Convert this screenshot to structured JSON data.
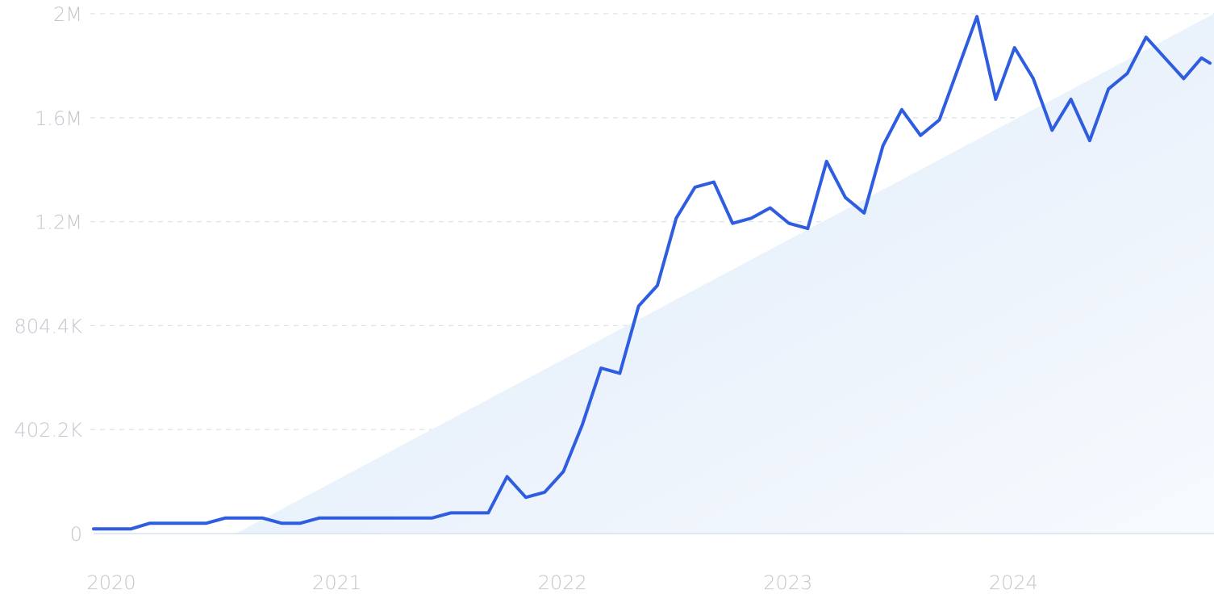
{
  "chart_data": {
    "type": "line",
    "title": "",
    "xlabel": "",
    "ylabel": "",
    "grid": true,
    "legend": "none",
    "ylim": [
      0,
      2011000
    ],
    "y_ticks": [
      {
        "value": 0,
        "label": "0"
      },
      {
        "value": 402200,
        "label": "402.2K"
      },
      {
        "value": 804400,
        "label": "804.4K"
      },
      {
        "value": 1206600,
        "label": "1.2M"
      },
      {
        "value": 1608800,
        "label": "1.6M"
      },
      {
        "value": 2011000,
        "label": "2M"
      }
    ],
    "x_range": [
      "2020-01",
      "2024-11"
    ],
    "x_ticks": [
      {
        "value": "2020-01",
        "label": "2020"
      },
      {
        "value": "2021-01",
        "label": "2021"
      },
      {
        "value": "2022-01",
        "label": "2022"
      },
      {
        "value": "2023-01",
        "label": "2023"
      },
      {
        "value": "2024-01",
        "label": "2024"
      }
    ],
    "colors": {
      "line": "#2f5de0",
      "trend_fill_start": "#dde9f9",
      "trend_fill_end": "#f7fafe",
      "tick_text": "#c4c7cf",
      "grid": "#dde4ee"
    },
    "trend": {
      "type": "linear",
      "start": {
        "x": "2020-09",
        "y": 0
      },
      "end": {
        "x": "2024-11",
        "y": 2011000
      }
    },
    "series": [
      {
        "x": [
          "2020-01",
          "2020-02",
          "2020-03",
          "2020-04",
          "2020-05",
          "2020-06",
          "2020-07",
          "2020-08",
          "2020-09",
          "2020-10",
          "2020-11",
          "2020-12",
          "2021-01",
          "2021-02",
          "2021-03",
          "2021-04",
          "2021-05",
          "2021-06",
          "2021-07",
          "2021-08",
          "2021-09",
          "2021-10",
          "2021-11",
          "2021-12",
          "2022-01",
          "2022-02",
          "2022-03",
          "2022-04",
          "2022-05",
          "2022-06",
          "2022-07",
          "2022-08",
          "2022-09",
          "2022-10",
          "2022-11",
          "2022-12",
          "2023-01",
          "2023-02",
          "2023-03",
          "2023-04",
          "2023-05",
          "2023-06",
          "2023-07",
          "2023-08",
          "2023-09",
          "2023-10",
          "2023-11",
          "2023-12",
          "2024-01",
          "2024-02",
          "2024-03",
          "2024-04",
          "2024-05",
          "2024-06",
          "2024-07",
          "2024-08",
          "2024-09",
          "2024-10",
          "2024-11"
        ],
        "values": [
          18000,
          18000,
          18000,
          40000,
          40000,
          40000,
          40000,
          60000,
          60000,
          60000,
          40000,
          40000,
          60000,
          60000,
          60000,
          60000,
          60000,
          60000,
          60000,
          80000,
          80000,
          80000,
          220000,
          140000,
          160000,
          240000,
          420000,
          640000,
          620000,
          880000,
          960000,
          1220000,
          1340000,
          1360000,
          1200000,
          1220000,
          1260000,
          1200000,
          1180000,
          1440000,
          1300000,
          1240000,
          1500000,
          1640000,
          1540000,
          1600000,
          1800000,
          2000000,
          1680000,
          1880000,
          1760000,
          1560000,
          1680000,
          1520000,
          1720000,
          1780000,
          1920000,
          1840000,
          1760000
        ]
      }
    ],
    "tail": {
      "x": "2024-11",
      "values_after": [
        1840000,
        1820000
      ]
    }
  }
}
